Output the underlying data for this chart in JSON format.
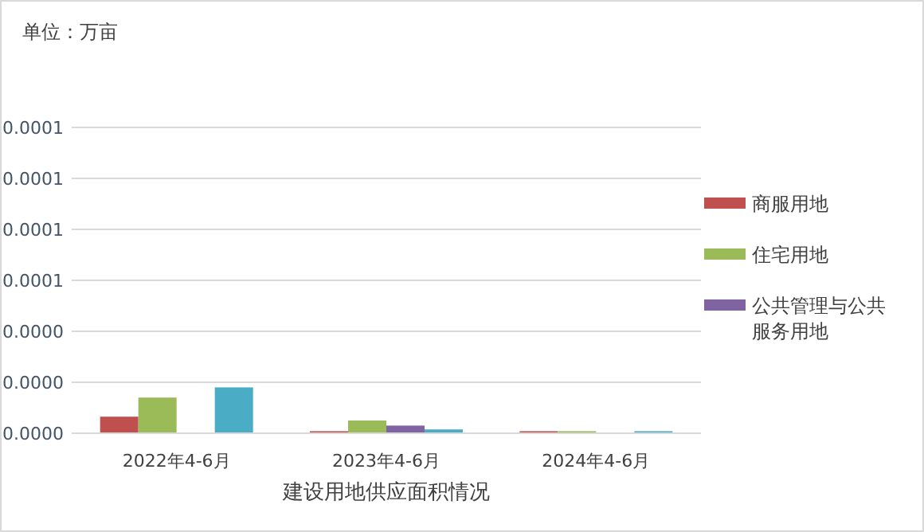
{
  "chart_data": {
    "type": "bar",
    "annotations": [
      "单位：万亩"
    ],
    "xlabel": "建设用地供应面积情况",
    "categories": [
      "2022年4-6月",
      "2023年4-6月",
      "2024年4-6月"
    ],
    "series": [
      {
        "name": "商服用地",
        "color": "#c0504d",
        "values": [
          6.5e-06,
          8e-07,
          8e-07
        ]
      },
      {
        "name": "住宅用地",
        "color": "#9bbb59",
        "values": [
          1.4e-05,
          5e-06,
          8e-07
        ]
      },
      {
        "name": "公共管理与公共服务用地",
        "color": "#8064a2",
        "values": [
          0,
          3e-06,
          0
        ]
      },
      {
        "color": "#4bacc6",
        "values": [
          1.8e-05,
          1.5e-06,
          8e-07
        ]
      }
    ],
    "ylim": [
      0,
      0.00012
    ],
    "yticks": [
      {
        "value": 0,
        "label": "0.0000"
      },
      {
        "value": 2e-05,
        "label": "0.0000"
      },
      {
        "value": 4e-05,
        "label": "0.0000"
      },
      {
        "value": 6e-05,
        "label": "0.0001"
      },
      {
        "value": 8e-05,
        "label": "0.0001"
      },
      {
        "value": 0.0001,
        "label": "0.0001"
      },
      {
        "value": 0.00012,
        "label": "0.0001"
      }
    ],
    "grid": "y",
    "legend": "right"
  }
}
